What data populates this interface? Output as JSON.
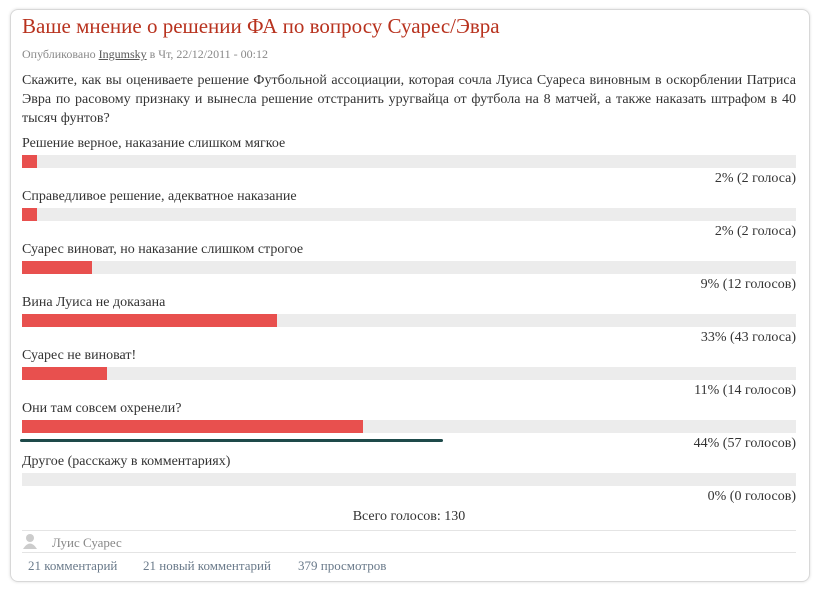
{
  "title": "Ваше мнение о решении ФА по вопросу Суарес/Эвра",
  "meta": {
    "prefix": "Опубликовано",
    "author": "Ingumsky",
    "date": "в Чт, 22/12/2011 - 00:12"
  },
  "question": "Скажите, как вы оцениваете решение Футбольной ассоциации, которая сочла Луиса Суареса виновным в оскорблении Патриса Эвра по расовому признаку и вынесла решение отстранить уругвайца от футбола на 8 матчей, а также наказать штрафом в 40 тысяч фунтов?",
  "poll": {
    "xlim": [
      0,
      100
    ],
    "bar_color": "#e8504e",
    "track_color": "#ececec",
    "options": [
      {
        "label": "Решение верное, наказание слишком мягкое",
        "percent": 2,
        "value_label": "2% (2 голоса)"
      },
      {
        "label": "Справедливое решение, адекватное наказание",
        "percent": 2,
        "value_label": "2% (2 голоса)"
      },
      {
        "label": "Суарес виноват, но наказание слишком строгое",
        "percent": 9,
        "value_label": "9% (12 голосов)"
      },
      {
        "label": "Вина Луиса не доказана",
        "percent": 33,
        "value_label": "33% (43 голоса)"
      },
      {
        "label": "Суарес не виноват!",
        "percent": 11,
        "value_label": "11% (14 голосов)"
      },
      {
        "label": "Они там совсем охренели?",
        "percent": 44,
        "value_label": "44% (57 голосов)"
      },
      {
        "label": "Другое (расскажу в комментариях)",
        "percent": 0,
        "value_label": "0% (0 голосов)"
      }
    ],
    "total": "Всего голосов: 130"
  },
  "tag": "Луис Суарес",
  "links": [
    "21 комментарий",
    "21 новый комментарий",
    "379 просмотров"
  ]
}
